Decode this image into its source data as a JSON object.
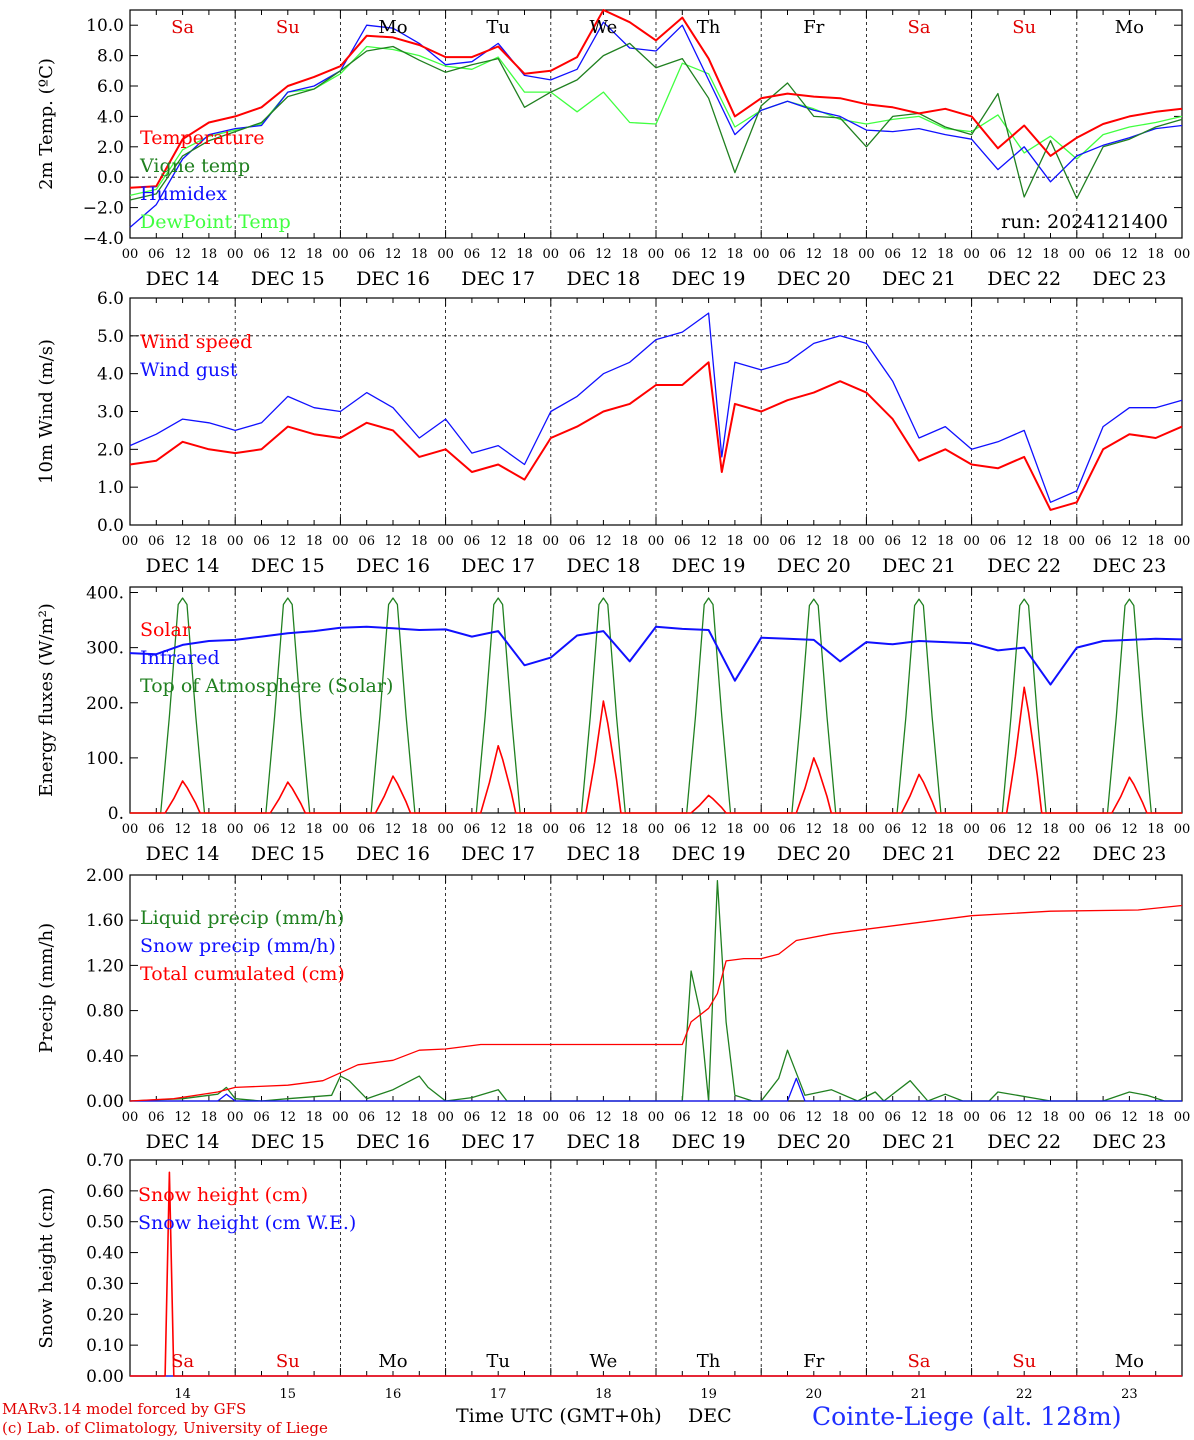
{
  "run_label": "run: 2024121400",
  "day_names": [
    "Sa",
    "Su",
    "Mo",
    "Tu",
    "We",
    "Th",
    "Fr",
    "Sa",
    "Su",
    "Mo"
  ],
  "weekend_index": [
    0,
    1,
    7,
    8
  ],
  "date_labels": [
    "DEC 14",
    "DEC 15",
    "DEC 16",
    "DEC 17",
    "DEC 18",
    "DEC 19",
    "DEC 20",
    "DEC 21",
    "DEC 22",
    "DEC 23"
  ],
  "hour_ticks": [
    "00",
    "06",
    "12",
    "18"
  ],
  "bottom_days": [
    "14",
    "15",
    "16",
    "17",
    "18",
    "19",
    "20",
    "21",
    "22",
    "23"
  ],
  "colors": {
    "red": "#ff0000",
    "darkgreen": "#208020",
    "blue": "#1010ff",
    "lightgreen": "#40ff40"
  },
  "footer": {
    "line1": "MARv3.14 model forced by GFS",
    "line2": "(c) Lab. of Climatology, University of Liege",
    "xlabel": "Time UTC (GMT+0h)",
    "month": "DEC",
    "station": "Cointe-Liege (alt. 128m)"
  },
  "chart_data": [
    {
      "type": "line",
      "ylabel": "2m Temp. (ºC)",
      "ylim": [
        -4,
        11
      ],
      "yticks": [
        -4,
        -2,
        0,
        2,
        4,
        6,
        8,
        10
      ],
      "ytick_labels": [
        "−4.0",
        "−2.0",
        "0.0",
        "2.0",
        "4.0",
        "6.0",
        "8.0",
        "10.0"
      ],
      "zero_line": true,
      "x_hours": [
        0,
        6,
        12,
        18,
        24,
        30,
        36,
        42,
        48,
        54,
        60,
        66,
        72,
        78,
        84,
        90,
        96,
        102,
        108,
        114,
        120,
        126,
        132,
        138,
        144,
        150,
        156,
        162,
        168,
        174,
        180,
        186,
        192,
        198,
        204,
        210,
        216,
        222,
        228,
        234,
        240
      ],
      "series": [
        {
          "name": "Temperature",
          "color": "#ff0000",
          "width": 2,
          "values": [
            -0.7,
            -0.6,
            2.5,
            3.6,
            4.0,
            4.6,
            6.0,
            6.6,
            7.3,
            9.3,
            9.2,
            8.7,
            7.9,
            7.9,
            8.6,
            6.8,
            7.0,
            7.9,
            11.0,
            10.2,
            9.0,
            10.5,
            7.8,
            4.0,
            5.2,
            5.5,
            5.3,
            5.2,
            4.8,
            4.6,
            4.2,
            4.5,
            4.0,
            1.9,
            3.4,
            1.4,
            2.6,
            3.5,
            4.0,
            4.3,
            4.5
          ]
        },
        {
          "name": "Vigne temp",
          "color": "#208020",
          "width": 1.3,
          "values": [
            -1.5,
            -1.1,
            1.4,
            2.4,
            3.0,
            3.6,
            5.3,
            5.8,
            7.0,
            8.3,
            8.6,
            7.7,
            6.9,
            7.4,
            7.8,
            4.6,
            5.6,
            6.4,
            8.0,
            8.8,
            7.2,
            7.8,
            5.2,
            0.3,
            4.7,
            6.2,
            4.0,
            3.9,
            2.0,
            4.0,
            4.2,
            3.3,
            2.8,
            5.5,
            -1.3,
            2.4,
            -1.4,
            2.0,
            2.5,
            3.3,
            3.8
          ]
        },
        {
          "name": "Humidex",
          "color": "#1010ff",
          "width": 1.3,
          "values": [
            -3.3,
            -1.8,
            1.2,
            2.8,
            3.2,
            3.4,
            5.6,
            6.0,
            7.0,
            10.0,
            9.8,
            8.8,
            7.4,
            7.6,
            8.8,
            6.7,
            6.4,
            7.1,
            10.2,
            8.5,
            8.3,
            10.0,
            6.4,
            2.8,
            4.4,
            5.0,
            4.4,
            4.0,
            3.1,
            3.0,
            3.2,
            2.8,
            2.5,
            0.5,
            2.0,
            -0.3,
            1.4,
            2.1,
            2.6,
            3.2,
            3.4
          ]
        },
        {
          "name": "DewPoint Temp",
          "color": "#40ff40",
          "width": 1.3,
          "values": [
            -1.2,
            -0.8,
            1.8,
            2.7,
            3.1,
            3.5,
            5.6,
            5.8,
            6.8,
            8.6,
            8.4,
            8.0,
            7.3,
            7.1,
            7.9,
            5.6,
            5.6,
            4.3,
            5.6,
            3.6,
            3.5,
            7.5,
            6.8,
            3.3,
            4.4,
            5.0,
            4.5,
            3.8,
            3.5,
            3.8,
            4.0,
            3.2,
            3.0,
            4.1,
            1.6,
            2.7,
            1.2,
            2.8,
            3.3,
            3.6,
            4.0
          ]
        }
      ]
    },
    {
      "type": "line",
      "ylabel": "10m Wind (m/s)",
      "ylim": [
        0,
        6
      ],
      "yticks": [
        0,
        1,
        2,
        3,
        4,
        5,
        6
      ],
      "ytick_labels": [
        "0.0",
        "1.0",
        "2.0",
        "3.0",
        "4.0",
        "5.0",
        "6.0"
      ],
      "ref_line": 5,
      "x_hours": [
        0,
        6,
        12,
        18,
        24,
        30,
        36,
        42,
        48,
        54,
        60,
        66,
        72,
        78,
        84,
        90,
        96,
        102,
        108,
        114,
        120,
        126,
        132,
        135,
        138,
        144,
        150,
        156,
        162,
        168,
        174,
        180,
        186,
        192,
        198,
        204,
        210,
        216,
        222,
        228,
        234,
        240
      ],
      "series": [
        {
          "name": "Wind speed",
          "color": "#ff0000",
          "width": 2,
          "values": [
            1.6,
            1.7,
            2.2,
            2.0,
            1.9,
            2.0,
            2.6,
            2.4,
            2.3,
            2.7,
            2.5,
            1.8,
            2.0,
            1.4,
            1.6,
            1.2,
            2.3,
            2.6,
            3.0,
            3.2,
            3.7,
            3.7,
            4.3,
            1.4,
            3.2,
            3.0,
            3.3,
            3.5,
            3.8,
            3.5,
            2.8,
            1.7,
            2.0,
            1.6,
            1.5,
            1.8,
            0.4,
            0.6,
            2.0,
            2.4,
            2.3,
            2.6
          ]
        },
        {
          "name": "Wind gust",
          "color": "#1010ff",
          "width": 1.3,
          "values": [
            2.1,
            2.4,
            2.8,
            2.7,
            2.5,
            2.7,
            3.4,
            3.1,
            3.0,
            3.5,
            3.1,
            2.3,
            2.8,
            1.9,
            2.1,
            1.6,
            3.0,
            3.4,
            4.0,
            4.3,
            4.9,
            5.1,
            5.6,
            1.8,
            4.3,
            4.1,
            4.3,
            4.8,
            5.0,
            4.8,
            3.8,
            2.3,
            2.6,
            2.0,
            2.2,
            2.5,
            0.6,
            0.9,
            2.6,
            3.1,
            3.1,
            3.3
          ]
        }
      ]
    },
    {
      "type": "line",
      "ylabel": "Energy fluxes (W/m²)",
      "ylim": [
        0,
        410
      ],
      "yticks": [
        0,
        100,
        200,
        300,
        400
      ],
      "ytick_labels": [
        "0.",
        "100.",
        "200.",
        "300.",
        "400."
      ],
      "series": [
        {
          "name": "Solar",
          "color": "#ff0000",
          "width": 1.6,
          "peaks": [
            58,
            56,
            67,
            122,
            203,
            32,
            100,
            70,
            228,
            65
          ]
        },
        {
          "name": "Infrared",
          "color": "#1010ff",
          "width": 2,
          "x_hours": [
            0,
            6,
            12,
            18,
            24,
            30,
            36,
            42,
            48,
            54,
            60,
            66,
            72,
            78,
            84,
            90,
            96,
            102,
            108,
            114,
            120,
            126,
            132,
            138,
            144,
            150,
            156,
            162,
            168,
            174,
            180,
            186,
            192,
            198,
            204,
            210,
            216,
            222,
            228,
            234,
            240
          ],
          "values": [
            290,
            288,
            305,
            312,
            314,
            320,
            326,
            330,
            336,
            338,
            335,
            332,
            333,
            320,
            330,
            268,
            282,
            322,
            330,
            275,
            338,
            334,
            332,
            240,
            318,
            316,
            314,
            275,
            310,
            306,
            312,
            310,
            308,
            295,
            300,
            233,
            300,
            312,
            314,
            316,
            315
          ]
        },
        {
          "name": "Top of Atmosphere (Solar)",
          "color": "#208020",
          "width": 1.3,
          "peaks": [
            390,
            390,
            390,
            390,
            390,
            390,
            388,
            388,
            388,
            388
          ]
        }
      ]
    },
    {
      "type": "line",
      "ylabel": "Precip (mm/h)",
      "ylim": [
        0,
        2.0
      ],
      "yticks": [
        0,
        0.4,
        0.8,
        1.2,
        1.6,
        2.0
      ],
      "ytick_labels": [
        "0.00",
        "0.40",
        "0.80",
        "1.20",
        "1.60",
        "2.00"
      ],
      "series": [
        {
          "name": "Liquid precip (mm/h)",
          "color": "#208020",
          "width": 1.3,
          "x_hours": [
            0,
            12,
            20,
            22,
            24,
            30,
            36,
            46,
            48,
            50,
            54,
            60,
            66,
            68,
            72,
            78,
            84,
            86,
            90,
            96,
            108,
            114,
            120,
            126,
            128,
            130,
            132,
            134,
            136,
            138,
            142,
            144,
            146,
            148,
            150,
            154,
            160,
            166,
            170,
            172,
            178,
            182,
            186,
            190,
            196,
            198,
            210,
            216,
            222,
            228,
            232,
            236,
            240
          ],
          "values": [
            0.0,
            0.02,
            0.06,
            0.12,
            0.02,
            0.0,
            0.02,
            0.05,
            0.22,
            0.18,
            0.02,
            0.1,
            0.22,
            0.12,
            0.0,
            0.03,
            0.1,
            0.0,
            0.0,
            0.0,
            0.0,
            0.0,
            0.0,
            0.0,
            1.15,
            0.8,
            0.0,
            1.95,
            0.7,
            0.05,
            0.0,
            0.0,
            0.1,
            0.2,
            0.45,
            0.05,
            0.1,
            0.0,
            0.08,
            0.0,
            0.18,
            0.0,
            0.06,
            0.0,
            0.0,
            0.08,
            0.0,
            0.0,
            0.0,
            0.08,
            0.05,
            0.0,
            0.0
          ]
        },
        {
          "name": "Snow precip (mm/h)",
          "color": "#1010ff",
          "width": 1.3,
          "x_hours": [
            0,
            20,
            22,
            24,
            48,
            150,
            152,
            154,
            240
          ],
          "values": [
            0.0,
            0.0,
            0.06,
            0.0,
            0.0,
            0.0,
            0.2,
            0.0,
            0.0
          ]
        },
        {
          "name": "Total cumulated (cm)",
          "color": "#ff0000",
          "width": 1.3,
          "x_hours": [
            0,
            10,
            20,
            24,
            36,
            44,
            48,
            52,
            60,
            66,
            72,
            80,
            90,
            100,
            120,
            126,
            128,
            132,
            134,
            136,
            140,
            144,
            148,
            152,
            160,
            168,
            176,
            192,
            210,
            230,
            240
          ],
          "values": [
            0.0,
            0.02,
            0.08,
            0.12,
            0.14,
            0.18,
            0.25,
            0.32,
            0.36,
            0.45,
            0.46,
            0.5,
            0.5,
            0.5,
            0.5,
            0.5,
            0.7,
            0.82,
            0.95,
            1.24,
            1.26,
            1.26,
            1.3,
            1.42,
            1.48,
            1.52,
            1.56,
            1.64,
            1.68,
            1.69,
            1.73
          ]
        }
      ]
    },
    {
      "type": "line",
      "ylabel": "Snow height (cm)",
      "ylim": [
        0,
        0.7
      ],
      "yticks": [
        0,
        0.1,
        0.2,
        0.3,
        0.4,
        0.5,
        0.6,
        0.7
      ],
      "ytick_labels": [
        "0.00",
        "0.10",
        "0.20",
        "0.30",
        "0.40",
        "0.50",
        "0.60",
        "0.70"
      ],
      "series": [
        {
          "name": "Snow height (cm)",
          "color": "#ff0000",
          "width": 1.6,
          "x_hours": [
            0,
            8,
            9,
            10,
            240
          ],
          "values": [
            0,
            0,
            0.66,
            0,
            0
          ]
        },
        {
          "name": "Snow height (cm W.E.)",
          "color": "#1010ff",
          "width": 1.3,
          "x_hours": [
            0,
            240
          ],
          "values": [
            0,
            0
          ]
        }
      ]
    }
  ]
}
